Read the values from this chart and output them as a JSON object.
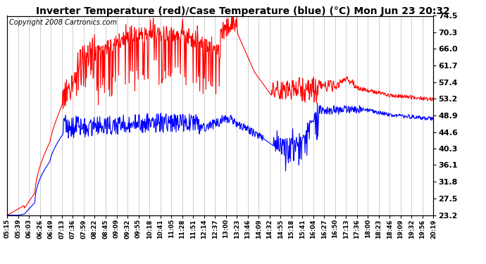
{
  "title": "Inverter Temperature (red)/Case Temperature (blue) (°C) Mon Jun 23 20:32",
  "copyright": "Copyright 2008 Cartronics.com",
  "background_color": "#ffffff",
  "plot_background": "#ffffff",
  "grid_color": "#bbbbbb",
  "yticks": [
    23.2,
    27.5,
    31.8,
    36.1,
    40.3,
    44.6,
    48.9,
    53.2,
    57.4,
    61.7,
    66.0,
    70.3,
    74.5
  ],
  "ylim": [
    23.2,
    74.5
  ],
  "x_labels": [
    "05:15",
    "05:39",
    "06:03",
    "06:26",
    "06:49",
    "07:13",
    "07:36",
    "07:59",
    "08:22",
    "08:45",
    "09:09",
    "09:32",
    "09:55",
    "10:18",
    "10:41",
    "11:05",
    "11:28",
    "11:51",
    "12:14",
    "12:37",
    "13:00",
    "13:23",
    "13:46",
    "14:09",
    "14:32",
    "14:55",
    "15:18",
    "15:41",
    "16:04",
    "16:27",
    "16:50",
    "17:13",
    "17:36",
    "18:00",
    "18:23",
    "18:46",
    "19:09",
    "19:32",
    "19:56",
    "20:19"
  ],
  "red_color": "#ff0000",
  "blue_color": "#0000ff",
  "line_width": 0.8,
  "title_fontsize": 10,
  "tick_fontsize": 8,
  "copyright_fontsize": 7
}
